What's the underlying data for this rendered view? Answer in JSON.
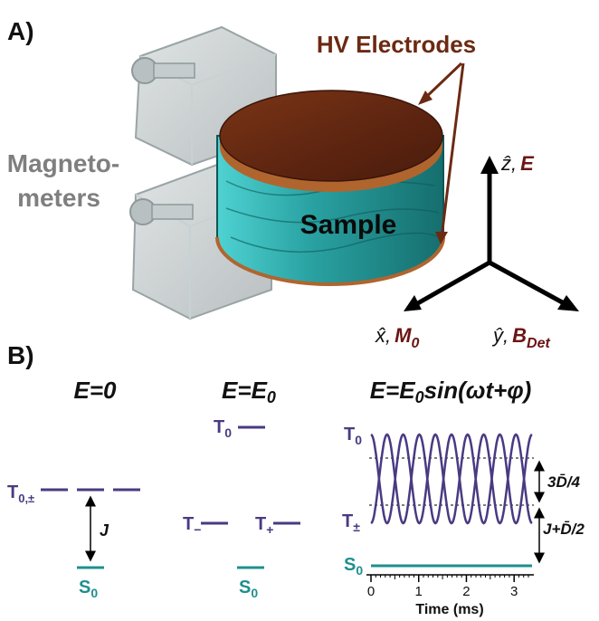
{
  "panel_a": {
    "label": "A)",
    "hv_label": "HV Electrodes",
    "magneto_line1": "Magneto-",
    "magneto_line2": "meters",
    "sample_label": "Sample",
    "axes": {
      "z_hat": "ẑ,",
      "z_field": "E",
      "x_hat": "x̂,",
      "x_field": "M",
      "x_sub": "0",
      "y_hat": "ŷ,",
      "y_field": "B",
      "y_sub": "Det"
    }
  },
  "panel_b": {
    "label": "B)",
    "case1": {
      "title": "E=0",
      "t_label": "T",
      "t_sub": "0,±",
      "j_label": "J",
      "s_label": "S",
      "s_sub": "0"
    },
    "case2": {
      "title_main": "E=E",
      "title_sub": "0",
      "t0_label": "T",
      "t0_sub": "0",
      "tminus_label": "T",
      "tminus_sub": "−",
      "tplus_label": "T",
      "tplus_sub": "+",
      "s_label": "S",
      "s_sub": "0"
    },
    "case3": {
      "title_main": "E=E",
      "title_sub": "0",
      "title_rest": "sin(ωt+φ)",
      "t0_label": "T",
      "t0_sub": "0",
      "tpm_label": "T",
      "tpm_sub": "±",
      "s_label": "S",
      "s_sub": "0",
      "gap_upper": "3D̄/4",
      "gap_lower": "J+D̄/2",
      "x_ticks": [
        "0",
        "1",
        "2",
        "3"
      ],
      "x_label": "Time (ms)"
    }
  },
  "colors": {
    "electrode": "#6b2a12",
    "label_red": "#6b1414",
    "sample_teal": "#1f8f8f",
    "level_purple": "#4a3a82",
    "singlet_teal": "#1f8f8f",
    "gray_text": "#7f7f7f"
  }
}
